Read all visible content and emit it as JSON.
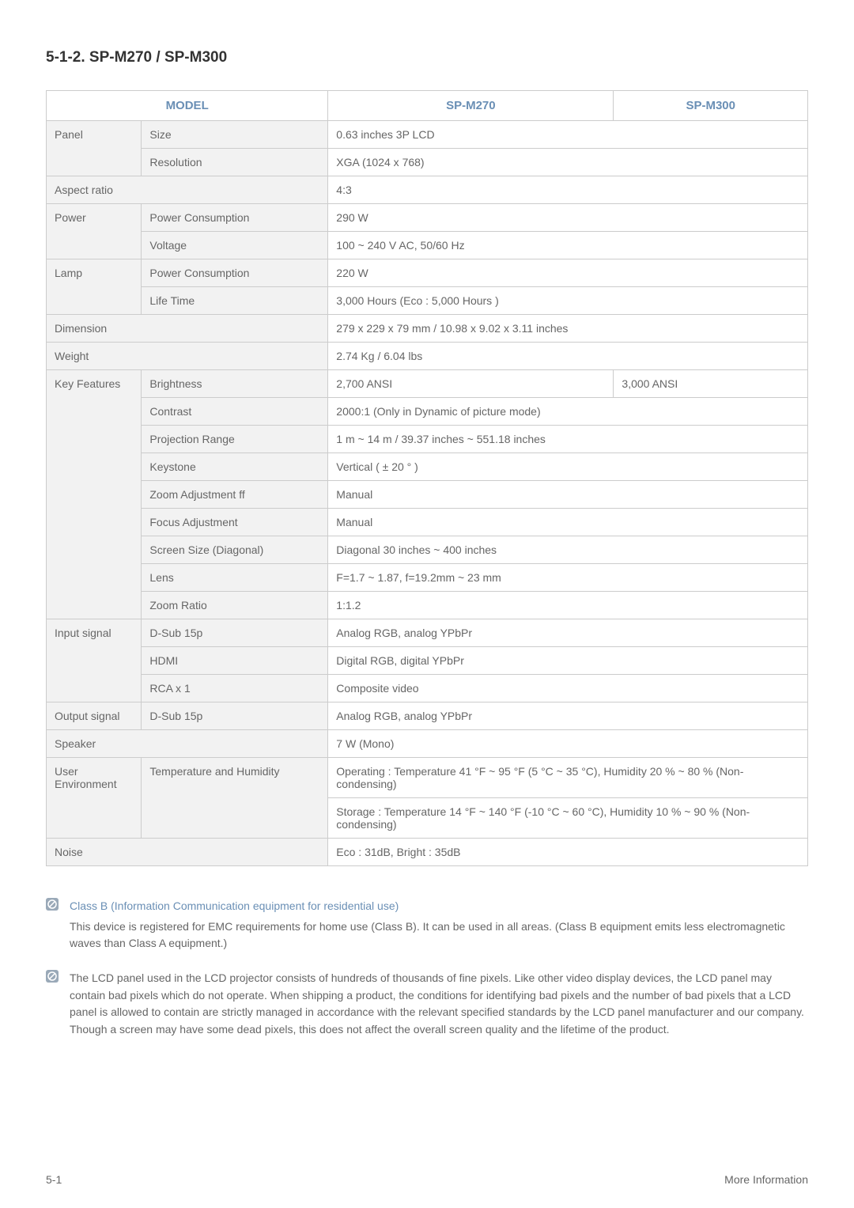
{
  "title": "5-1-2. SP-M270 / SP-M300",
  "headers": {
    "model": "MODEL",
    "col1": "SP-M270",
    "col2": "SP-M300"
  },
  "rows": [
    {
      "cat": "Panel",
      "sub": "Size",
      "val": "0.63 inches 3P LCD",
      "catRowspan": 2
    },
    {
      "sub": "Resolution",
      "val": "XGA (1024 x 768)"
    },
    {
      "cat": "Aspect ratio",
      "val": "4:3",
      "catColspan": 2
    },
    {
      "cat": "Power",
      "sub": "Power Consumption",
      "val": "290 W",
      "catRowspan": 2
    },
    {
      "sub": "Voltage",
      "val": "100 ~ 240 V AC, 50/60 Hz"
    },
    {
      "cat": "Lamp",
      "sub": "Power Consumption",
      "val": "220 W",
      "catRowspan": 2
    },
    {
      "sub": "Life Time",
      "val": "3,000 Hours (Eco : 5,000 Hours )"
    },
    {
      "cat": "Dimension",
      "val": "279 x 229 x 79 mm / 10.98 x 9.02 x 3.11 inches",
      "catColspan": 2
    },
    {
      "cat": "Weight",
      "val": "2.74 Kg / 6.04 lbs",
      "catColspan": 2
    },
    {
      "cat": "Key Features",
      "sub": "Brightness",
      "val1": "2,700 ANSI",
      "val2": "3,000 ANSI",
      "catRowspan": 9
    },
    {
      "sub": "Contrast",
      "val": "2000:1 (Only in Dynamic of picture mode)"
    },
    {
      "sub": "Projection Range",
      "val": "1 m ~ 14 m / 39.37 inches ~ 551.18 inches"
    },
    {
      "sub": "Keystone",
      "val": "Vertical ( ± 20 ° )"
    },
    {
      "sub": "Zoom Adjustment ff",
      "val": "Manual"
    },
    {
      "sub": "Focus Adjustment",
      "val": "Manual"
    },
    {
      "sub": "Screen Size (Diagonal)",
      "val": "Diagonal 30 inches ~ 400 inches"
    },
    {
      "sub": "Lens",
      "val": "F=1.7 ~ 1.87, f=19.2mm ~ 23 mm"
    },
    {
      "sub": "Zoom Ratio",
      "val": "1:1.2"
    },
    {
      "cat": "Input signal",
      "sub": "D-Sub 15p",
      "val": "Analog RGB, analog YPbPr",
      "catRowspan": 3
    },
    {
      "sub": "HDMI",
      "val": "Digital RGB, digital YPbPr"
    },
    {
      "sub": "RCA x 1",
      "val": "Composite video"
    },
    {
      "cat": "Output signal",
      "sub": "D-Sub 15p",
      "val": "Analog RGB, analog YPbPr"
    },
    {
      "cat": "Speaker",
      "val": "7 W (Mono)",
      "catColspan": 2
    },
    {
      "cat": "User Environment",
      "sub": "Temperature and Humidity",
      "val": "Operating : Temperature 41 °F ~ 95 °F (5 °C ~ 35 °C), Humidity 20 % ~ 80 % (Non-condensing)",
      "catRowspan": 2,
      "subRowspan": 2
    },
    {
      "val": "Storage : Temperature 14 °F ~ 140 °F (-10 °C ~ 60 °C), Humidity 10 % ~ 90 % (Non-condensing)"
    },
    {
      "cat": "Noise",
      "val": "Eco : 31dB, Bright : 35dB",
      "catColspan": 2
    }
  ],
  "notes": [
    {
      "head": "Class B (Information Communication equipment for residential use)",
      "text": "This device is registered for EMC requirements for home use (Class B). It can be used in all areas. (Class B equipment emits less electromagnetic waves than Class A equipment.)"
    },
    {
      "text": "The LCD panel used in the LCD projector consists of hundreds of thousands of fine pixels. Like other video display devices, the LCD panel may contain bad pixels which do not operate. When shipping a product, the conditions for identifying bad pixels and the number of bad pixels that a LCD panel is allowed to contain are strictly managed in accordance with the relevant specified standards by the LCD panel manufacturer and our company. Though a screen may have some dead pixels, this does not affect the overall screen quality and the lifetime of the product."
    }
  ],
  "footer": {
    "left": "5-1",
    "right": "More Information"
  },
  "colors": {
    "header": "#6a8fb5",
    "catbg": "#f2f2f2",
    "border": "#cccccc",
    "text": "#666666",
    "titleColor": "#333333"
  },
  "colWidths": {
    "c1": "12.5%",
    "c2": "24.5%",
    "c3": "37.5%",
    "c4": "25.5%"
  }
}
